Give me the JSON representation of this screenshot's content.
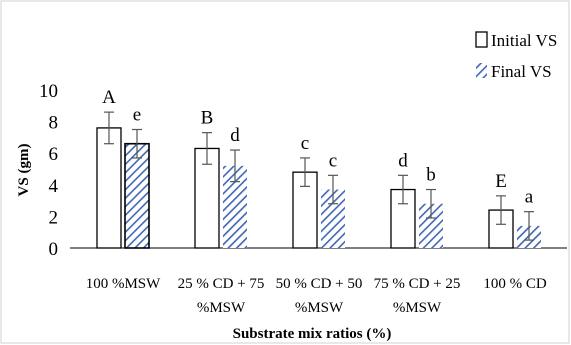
{
  "chart_data": {
    "type": "bar",
    "ylabel": "VS (gm)",
    "xlabel": "Substrate mix ratios (%)",
    "ylim": [
      0,
      10
    ],
    "yticks": [
      0,
      2,
      4,
      6,
      8,
      10
    ],
    "grid": false,
    "legend_position": "top-right",
    "categories": [
      [
        "100 %MSW"
      ],
      [
        "25 % CD + 75",
        "%MSW"
      ],
      [
        "50 % CD + 50",
        "%MSW"
      ],
      [
        "75 % CD + 25",
        "%MSW"
      ],
      [
        "100 % CD"
      ]
    ],
    "series": [
      {
        "name": "Initial VS",
        "values": [
          7.6,
          6.3,
          4.8,
          3.7,
          2.4
        ],
        "errors": [
          1.0,
          1.0,
          0.9,
          0.9,
          0.9
        ],
        "letters": [
          "A",
          "B",
          "c",
          "d",
          "E"
        ],
        "fill": "#ffffff",
        "stroke": "#000000"
      },
      {
        "name": "Final VS",
        "values": [
          6.6,
          5.2,
          3.7,
          2.8,
          1.4
        ],
        "errors": [
          0.9,
          1.0,
          0.9,
          0.9,
          0.9
        ],
        "letters": [
          "e",
          "d",
          "c",
          "b",
          "a"
        ],
        "fill": "hatch",
        "color": "#3f66b5"
      }
    ]
  }
}
